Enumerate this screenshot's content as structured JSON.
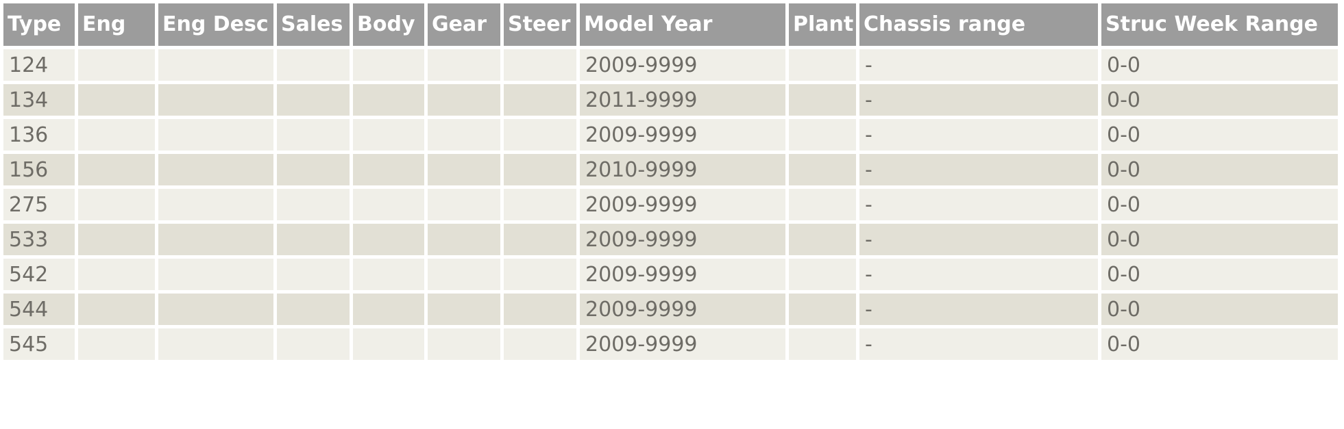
{
  "colors": {
    "header_bg": "#9c9c9c",
    "header_text": "#ffffff",
    "row_odd_bg": "#f0efe8",
    "row_even_bg": "#e2e0d5",
    "cell_text": "#6e6c66",
    "page_bg": "#ffffff"
  },
  "table": {
    "columns": [
      {
        "key": "type",
        "label": "Type"
      },
      {
        "key": "eng",
        "label": "Eng"
      },
      {
        "key": "eng_desc",
        "label": "Eng Desc"
      },
      {
        "key": "sales",
        "label": "Sales"
      },
      {
        "key": "body",
        "label": "Body"
      },
      {
        "key": "gear",
        "label": "Gear"
      },
      {
        "key": "steer",
        "label": "Steer"
      },
      {
        "key": "model_year",
        "label": "Model Year"
      },
      {
        "key": "plant",
        "label": "Plant"
      },
      {
        "key": "chassis_range",
        "label": "Chassis range"
      },
      {
        "key": "struc_week_range",
        "label": "Struc Week Range"
      }
    ],
    "rows": [
      {
        "type": "124",
        "eng": "",
        "eng_desc": "",
        "sales": "",
        "body": "",
        "gear": "",
        "steer": "",
        "model_year": "2009-9999",
        "plant": "",
        "chassis_range": "-",
        "struc_week_range": "0-0"
      },
      {
        "type": "134",
        "eng": "",
        "eng_desc": "",
        "sales": "",
        "body": "",
        "gear": "",
        "steer": "",
        "model_year": "2011-9999",
        "plant": "",
        "chassis_range": "-",
        "struc_week_range": "0-0"
      },
      {
        "type": "136",
        "eng": "",
        "eng_desc": "",
        "sales": "",
        "body": "",
        "gear": "",
        "steer": "",
        "model_year": "2009-9999",
        "plant": "",
        "chassis_range": "-",
        "struc_week_range": "0-0"
      },
      {
        "type": "156",
        "eng": "",
        "eng_desc": "",
        "sales": "",
        "body": "",
        "gear": "",
        "steer": "",
        "model_year": "2010-9999",
        "plant": "",
        "chassis_range": "-",
        "struc_week_range": "0-0"
      },
      {
        "type": "275",
        "eng": "",
        "eng_desc": "",
        "sales": "",
        "body": "",
        "gear": "",
        "steer": "",
        "model_year": "2009-9999",
        "plant": "",
        "chassis_range": "-",
        "struc_week_range": "0-0"
      },
      {
        "type": "533",
        "eng": "",
        "eng_desc": "",
        "sales": "",
        "body": "",
        "gear": "",
        "steer": "",
        "model_year": "2009-9999",
        "plant": "",
        "chassis_range": "-",
        "struc_week_range": "0-0"
      },
      {
        "type": "542",
        "eng": "",
        "eng_desc": "",
        "sales": "",
        "body": "",
        "gear": "",
        "steer": "",
        "model_year": "2009-9999",
        "plant": "",
        "chassis_range": "-",
        "struc_week_range": "0-0"
      },
      {
        "type": "544",
        "eng": "",
        "eng_desc": "",
        "sales": "",
        "body": "",
        "gear": "",
        "steer": "",
        "model_year": "2009-9999",
        "plant": "",
        "chassis_range": "-",
        "struc_week_range": "0-0"
      },
      {
        "type": "545",
        "eng": "",
        "eng_desc": "",
        "sales": "",
        "body": "",
        "gear": "",
        "steer": "",
        "model_year": "2009-9999",
        "plant": "",
        "chassis_range": "-",
        "struc_week_range": "0-0"
      }
    ]
  }
}
